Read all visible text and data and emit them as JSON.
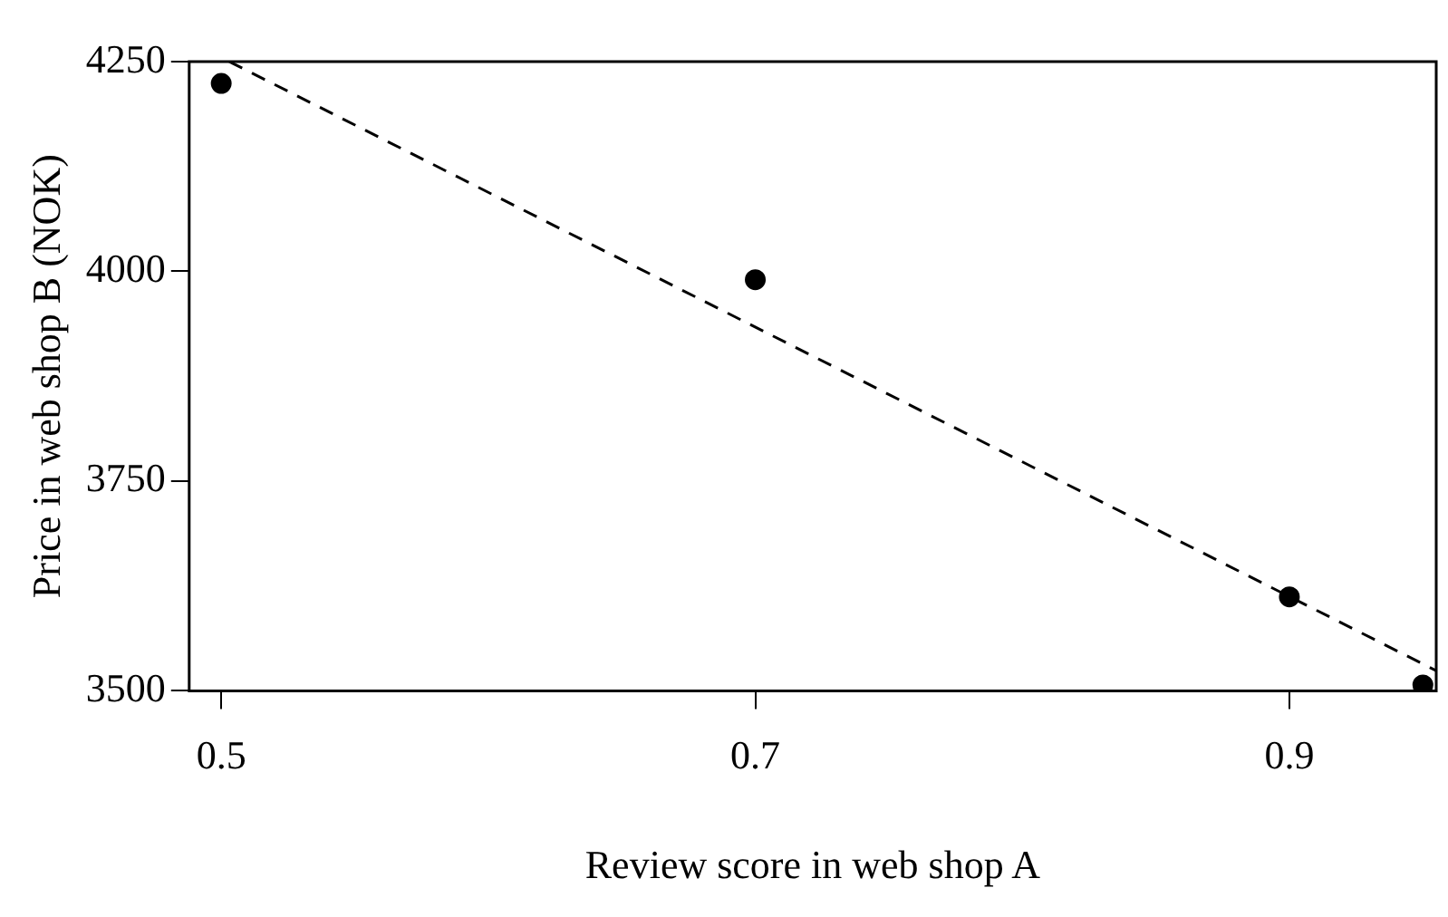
{
  "chart_data": {
    "type": "scatter",
    "xlabel": "Review score in web shop A",
    "ylabel": "Price in web shop B (NOK)",
    "xlim": [
      0.488,
      0.955
    ],
    "xticks": [
      0.5,
      0.7,
      0.9
    ],
    "ylim": [
      3500,
      4250
    ],
    "yticks": [
      3500,
      3750,
      4000,
      4250
    ],
    "grid": false,
    "legend": false,
    "marker": "circle",
    "series": [
      {
        "color": "#000000",
        "x": [
          0.5,
          0.7,
          0.9,
          0.95
        ],
        "values": [
          4224,
          3990,
          3612,
          3507
        ]
      },
      {
        "type": "line",
        "color": "#000000",
        "line_style": "dashed",
        "marker": "none",
        "x": [
          0.503,
          0.955
        ],
        "values": [
          4250,
          3524
        ]
      }
    ]
  }
}
